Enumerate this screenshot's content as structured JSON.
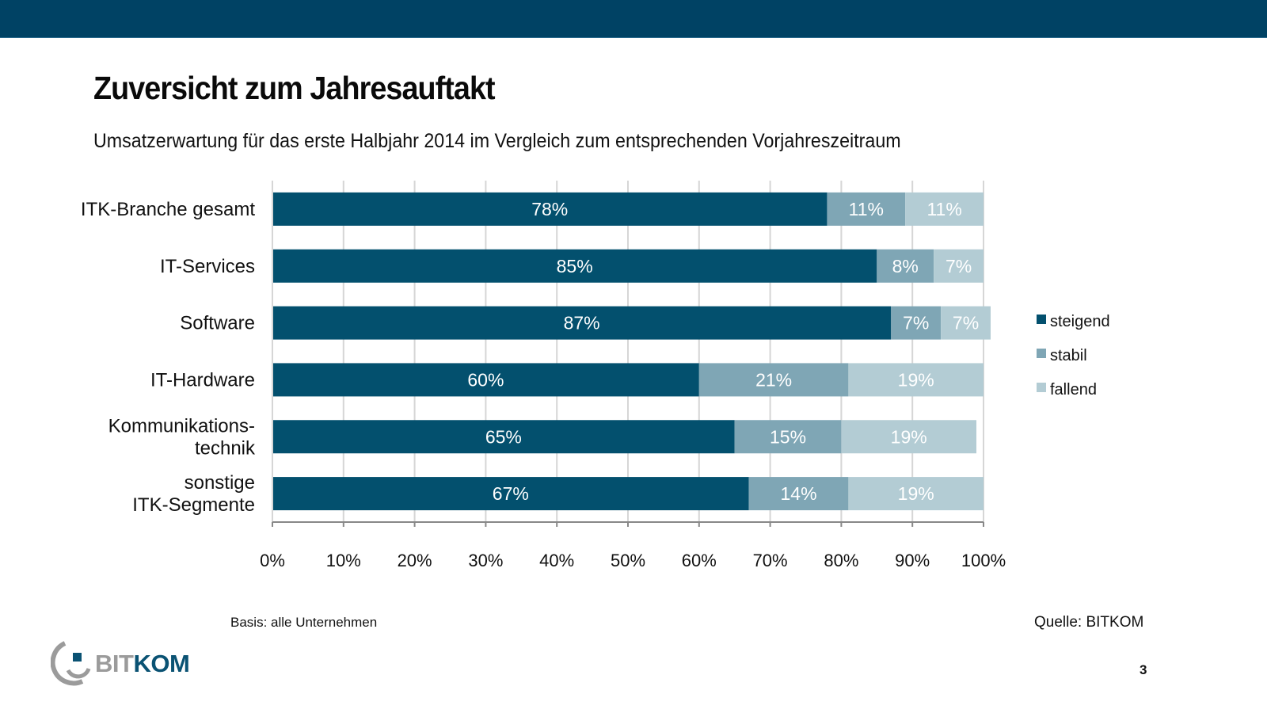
{
  "header": {
    "title": "Zuversicht zum Jahresauftakt",
    "subtitle": "Umsatzerwartung für das erste Halbjahr 2014 im Vergleich zum entsprechenden Vorjahreszeitraum"
  },
  "colors": {
    "topbar": "#004264",
    "steigend": "#03506e",
    "stabil": "#7fa6b5",
    "fallend": "#b3ccd4",
    "grid": "#d6d6d6",
    "axis": "#888888"
  },
  "chart_data": {
    "type": "bar",
    "orientation": "horizontal",
    "stacked": true,
    "title": "Umsatzerwartung für das erste Halbjahr 2014 im Vergleich zum entsprechenden Vorjahreszeitraum",
    "categories": [
      [
        "ITK-Branche gesamt"
      ],
      [
        "IT-Services"
      ],
      [
        "Software"
      ],
      [
        "IT-Hardware"
      ],
      [
        "Kommunikations-",
        "technik"
      ],
      [
        "sonstige",
        "ITK-Segmente"
      ]
    ],
    "series": [
      {
        "name": "steigend",
        "color": "#03506e",
        "values": [
          78,
          85,
          87,
          60,
          65,
          67
        ]
      },
      {
        "name": "stabil",
        "color": "#7fa6b5",
        "values": [
          11,
          8,
          7,
          21,
          15,
          14
        ]
      },
      {
        "name": "fallend",
        "color": "#b3ccd4",
        "values": [
          11,
          7,
          7,
          19,
          19,
          19
        ]
      }
    ],
    "xlabel": "",
    "ylabel": "",
    "xlim": [
      0,
      100
    ],
    "xticks": [
      "0%",
      "10%",
      "20%",
      "30%",
      "40%",
      "50%",
      "60%",
      "70%",
      "80%",
      "90%",
      "100%"
    ],
    "value_suffix": "%",
    "grid": true,
    "legend": "right"
  },
  "footer": {
    "basis": "Basis: alle Unternehmen",
    "source": "Quelle:  BITKOM",
    "page_number": "3",
    "logo_part1": "BIT",
    "logo_part2": "KOM"
  }
}
